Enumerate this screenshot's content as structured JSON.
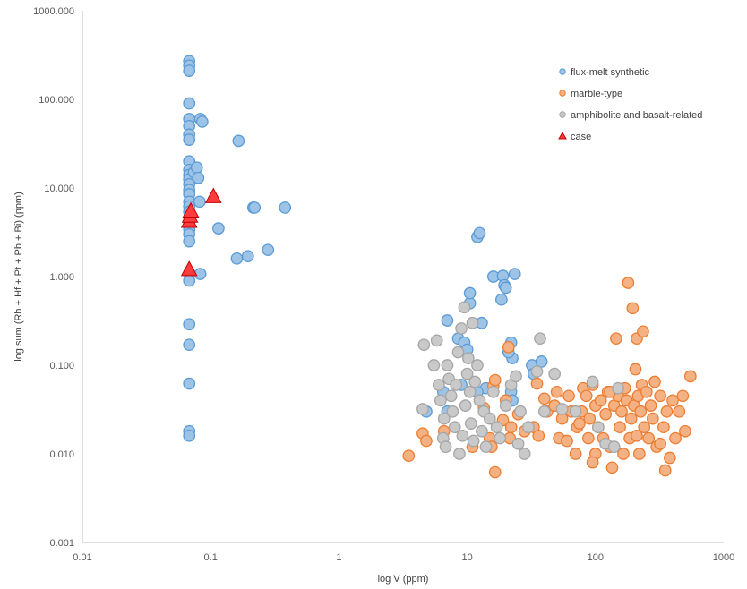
{
  "chart_data": {
    "type": "scatter",
    "xscale": "log",
    "yscale": "log",
    "xlabel": "log V (ppm)",
    "ylabel": "log  sum (Rh + Hf + Pt + Pb + Bi)  (ppm)",
    "xlim": [
      0.01,
      1000
    ],
    "ylim": [
      0.001,
      1000
    ],
    "xticks": [
      {
        "value": 0.01,
        "label": "0.01"
      },
      {
        "value": 0.1,
        "label": "0.1"
      },
      {
        "value": 1,
        "label": "1"
      },
      {
        "value": 10,
        "label": "10"
      },
      {
        "value": 100,
        "label": "100"
      },
      {
        "value": 1000,
        "label": "1000"
      }
    ],
    "yticks": [
      {
        "value": 0.001,
        "label": "0.001"
      },
      {
        "value": 0.01,
        "label": "0.010"
      },
      {
        "value": 0.1,
        "label": "0.100"
      },
      {
        "value": 1,
        "label": "1.000"
      },
      {
        "value": 10,
        "label": "10.000"
      },
      {
        "value": 100,
        "label": "100.000"
      },
      {
        "value": 1000,
        "label": "1000.000"
      }
    ],
    "grid": false,
    "legend_position": "top-right",
    "series": [
      {
        "name": "flux-melt synthetic",
        "marker": "circle",
        "fill": "#9DC3E6",
        "stroke": "#5B9BD5",
        "points": [
          [
            0.068,
            270
          ],
          [
            0.068,
            240
          ],
          [
            0.068,
            210
          ],
          [
            0.068,
            90
          ],
          [
            0.068,
            60
          ],
          [
            0.068,
            50
          ],
          [
            0.068,
            40
          ],
          [
            0.068,
            35
          ],
          [
            0.068,
            20
          ],
          [
            0.068,
            16
          ],
          [
            0.068,
            14
          ],
          [
            0.068,
            12.5
          ],
          [
            0.068,
            11
          ],
          [
            0.068,
            9.5
          ],
          [
            0.068,
            8.5
          ],
          [
            0.068,
            7
          ],
          [
            0.068,
            6.2
          ],
          [
            0.068,
            5.4
          ],
          [
            0.068,
            4.6
          ],
          [
            0.068,
            4
          ],
          [
            0.068,
            3.4
          ],
          [
            0.068,
            3
          ],
          [
            0.068,
            2.5
          ],
          [
            0.068,
            1.1
          ],
          [
            0.068,
            0.9
          ],
          [
            0.068,
            0.29
          ],
          [
            0.068,
            0.17
          ],
          [
            0.068,
            0.062
          ],
          [
            0.068,
            0.018
          ],
          [
            0.068,
            0.016
          ],
          [
            0.074,
            15
          ],
          [
            0.078,
            17
          ],
          [
            0.08,
            13
          ],
          [
            0.082,
            7
          ],
          [
            0.083,
            60
          ],
          [
            0.086,
            56
          ],
          [
            0.083,
            1.07
          ],
          [
            0.115,
            3.5
          ],
          [
            0.16,
            1.6
          ],
          [
            0.165,
            34
          ],
          [
            0.195,
            1.7
          ],
          [
            0.215,
            6
          ],
          [
            0.22,
            6
          ],
          [
            0.28,
            2
          ],
          [
            0.38,
            6
          ],
          [
            7,
            0.32
          ],
          [
            8.5,
            0.2
          ],
          [
            9.5,
            0.18
          ],
          [
            10,
            0.15
          ],
          [
            10.5,
            0.5
          ],
          [
            10.5,
            0.65
          ],
          [
            12,
            2.8
          ],
          [
            12.5,
            3.1
          ],
          [
            13,
            0.3
          ],
          [
            14,
            0.055
          ],
          [
            16,
            1
          ],
          [
            18.5,
            0.55
          ],
          [
            19,
            1.02
          ],
          [
            19.5,
            0.8
          ],
          [
            20,
            0.75
          ],
          [
            22,
            0.18
          ],
          [
            22.5,
            0.12
          ],
          [
            23.5,
            1.07
          ],
          [
            21,
            0.14
          ],
          [
            22,
            0.05
          ],
          [
            22.5,
            0.04
          ],
          [
            32,
            0.1
          ],
          [
            33,
            0.08
          ],
          [
            38,
            0.11
          ],
          [
            12,
            0.05
          ],
          [
            6.5,
            0.05
          ],
          [
            7,
            0.03
          ],
          [
            9,
            0.06
          ],
          [
            4.8,
            0.03
          ]
        ]
      },
      {
        "name": "marble-type",
        "marker": "circle",
        "fill": "#F4B183",
        "stroke": "#ED7D31",
        "points": [
          [
            3.5,
            0.0095
          ],
          [
            4.5,
            0.017
          ],
          [
            4.8,
            0.014
          ],
          [
            6.6,
            0.018
          ],
          [
            11,
            0.012
          ],
          [
            13.5,
            0.033
          ],
          [
            15,
            0.015
          ],
          [
            15.5,
            0.012
          ],
          [
            16,
            0.058
          ],
          [
            16.5,
            0.068
          ],
          [
            16.5,
            0.0062
          ],
          [
            19,
            0.024
          ],
          [
            20,
            0.04
          ],
          [
            21,
            0.16
          ],
          [
            21.5,
            0.015
          ],
          [
            22,
            0.02
          ],
          [
            25,
            0.028
          ],
          [
            28,
            0.018
          ],
          [
            33,
            0.02
          ],
          [
            35,
            0.062
          ],
          [
            36,
            0.016
          ],
          [
            40,
            0.042
          ],
          [
            42,
            0.03
          ],
          [
            48,
            0.035
          ],
          [
            50,
            0.05
          ],
          [
            52,
            0.015
          ],
          [
            55,
            0.025
          ],
          [
            60,
            0.014
          ],
          [
            62,
            0.045
          ],
          [
            65,
            0.03
          ],
          [
            70,
            0.01
          ],
          [
            72,
            0.02
          ],
          [
            75,
            0.022
          ],
          [
            78,
            0.03
          ],
          [
            80,
            0.055
          ],
          [
            85,
            0.045
          ],
          [
            88,
            0.015
          ],
          [
            90,
            0.025
          ],
          [
            95,
            0.06
          ],
          [
            100,
            0.035
          ],
          [
            100,
            0.01
          ],
          [
            105,
            0.02
          ],
          [
            110,
            0.04
          ],
          [
            115,
            0.015
          ],
          [
            120,
            0.028
          ],
          [
            125,
            0.05
          ],
          [
            130,
            0.012
          ],
          [
            135,
            0.007
          ],
          [
            140,
            0.035
          ],
          [
            145,
            0.2
          ],
          [
            150,
            0.045
          ],
          [
            155,
            0.02
          ],
          [
            160,
            0.03
          ],
          [
            165,
            0.01
          ],
          [
            170,
            0.055
          ],
          [
            175,
            0.04
          ],
          [
            180,
            0.85
          ],
          [
            185,
            0.015
          ],
          [
            190,
            0.025
          ],
          [
            195,
            0.44
          ],
          [
            200,
            0.035
          ],
          [
            205,
            0.09
          ],
          [
            210,
            0.2
          ],
          [
            215,
            0.045
          ],
          [
            220,
            0.01
          ],
          [
            225,
            0.03
          ],
          [
            230,
            0.06
          ],
          [
            235,
            0.24
          ],
          [
            240,
            0.02
          ],
          [
            250,
            0.05
          ],
          [
            260,
            0.015
          ],
          [
            270,
            0.035
          ],
          [
            280,
            0.025
          ],
          [
            290,
            0.065
          ],
          [
            300,
            0.012
          ],
          [
            320,
            0.045
          ],
          [
            340,
            0.02
          ],
          [
            350,
            0.0065
          ],
          [
            360,
            0.03
          ],
          [
            380,
            0.009
          ],
          [
            400,
            0.04
          ],
          [
            420,
            0.015
          ],
          [
            450,
            0.03
          ],
          [
            480,
            0.045
          ],
          [
            500,
            0.018
          ],
          [
            550,
            0.075
          ],
          [
            320,
            0.013
          ],
          [
            210,
            0.016
          ],
          [
            130,
            0.05
          ],
          [
            95,
            0.008
          ]
        ]
      },
      {
        "name": "amphibolite and basalt-related",
        "marker": "circle",
        "fill": "#C9C9C9",
        "stroke": "#A5A5A5",
        "points": [
          [
            4.5,
            0.032
          ],
          [
            4.6,
            0.17
          ],
          [
            5.5,
            0.1
          ],
          [
            5.8,
            0.19
          ],
          [
            6,
            0.06
          ],
          [
            6.2,
            0.04
          ],
          [
            6.5,
            0.015
          ],
          [
            6.6,
            0.025
          ],
          [
            6.8,
            0.012
          ],
          [
            7,
            0.1
          ],
          [
            7.2,
            0.07
          ],
          [
            7.5,
            0.045
          ],
          [
            7.7,
            0.03
          ],
          [
            8,
            0.02
          ],
          [
            8.2,
            0.06
          ],
          [
            8.5,
            0.14
          ],
          [
            8.7,
            0.01
          ],
          [
            9,
            0.26
          ],
          [
            9.2,
            0.016
          ],
          [
            9.5,
            0.45
          ],
          [
            9.7,
            0.035
          ],
          [
            10,
            0.08
          ],
          [
            10.2,
            0.12
          ],
          [
            10.5,
            0.05
          ],
          [
            10.7,
            0.022
          ],
          [
            11,
            0.3
          ],
          [
            11.2,
            0.014
          ],
          [
            11.5,
            0.065
          ],
          [
            12,
            0.1
          ],
          [
            12.5,
            0.04
          ],
          [
            13,
            0.018
          ],
          [
            13.5,
            0.03
          ],
          [
            14,
            0.012
          ],
          [
            15,
            0.025
          ],
          [
            16,
            0.05
          ],
          [
            17,
            0.02
          ],
          [
            18,
            0.015
          ],
          [
            20,
            0.035
          ],
          [
            22,
            0.06
          ],
          [
            24,
            0.075
          ],
          [
            25,
            0.013
          ],
          [
            26,
            0.03
          ],
          [
            28,
            0.01
          ],
          [
            30,
            0.02
          ],
          [
            35,
            0.085
          ],
          [
            37,
            0.2
          ],
          [
            40,
            0.03
          ],
          [
            48,
            0.08
          ],
          [
            55,
            0.032
          ],
          [
            70,
            0.03
          ],
          [
            95,
            0.065
          ],
          [
            105,
            0.02
          ],
          [
            120,
            0.013
          ],
          [
            140,
            0.012
          ],
          [
            150,
            0.055
          ]
        ]
      },
      {
        "name": "case",
        "marker": "triangle",
        "fill": "#FF3B3B",
        "stroke": "#C00000",
        "points": [
          [
            0.068,
            1.2
          ],
          [
            0.068,
            4.2
          ],
          [
            0.069,
            4.8
          ],
          [
            0.07,
            5.5
          ],
          [
            0.105,
            8
          ]
        ]
      }
    ]
  }
}
